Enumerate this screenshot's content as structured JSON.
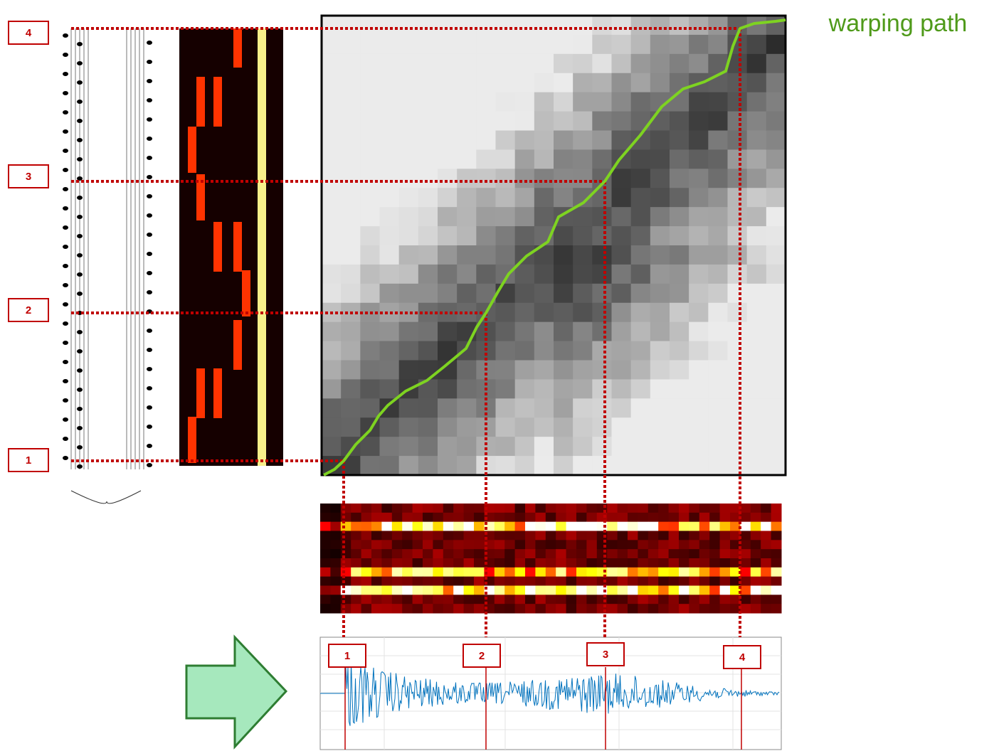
{
  "annotation": "warping path",
  "score_markers": [
    "1",
    "2",
    "3",
    "4"
  ],
  "audio_markers": [
    "1",
    "2",
    "3",
    "4"
  ]
}
